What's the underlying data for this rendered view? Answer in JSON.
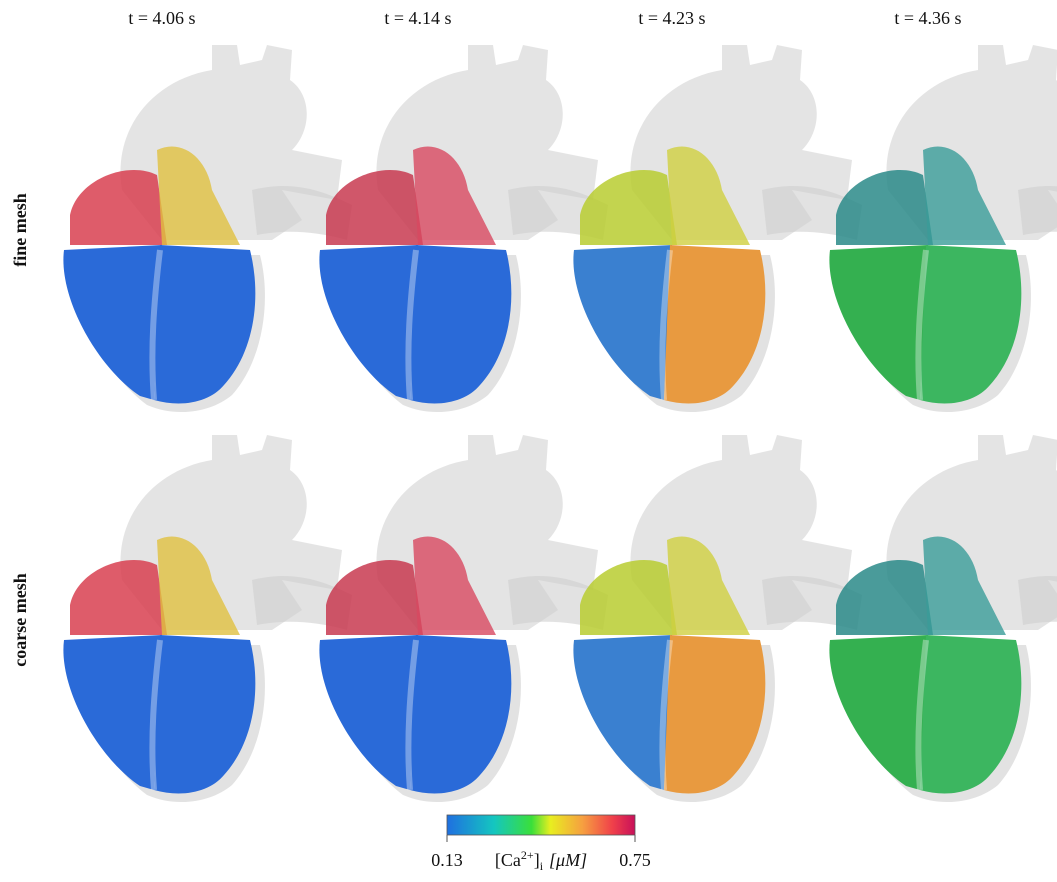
{
  "columns": [
    "t = 4.06 s",
    "t = 4.14 s",
    "t = 4.23 s",
    "t = 4.36 s"
  ],
  "rows": [
    "fine mesh",
    "coarse mesh"
  ],
  "colorbar": {
    "min": "0.13",
    "max": "0.75",
    "label": {
      "base": "[Ca",
      "sup": "2+",
      "close": "]",
      "sub": "i",
      "unit": "[μM]"
    }
  }
}
